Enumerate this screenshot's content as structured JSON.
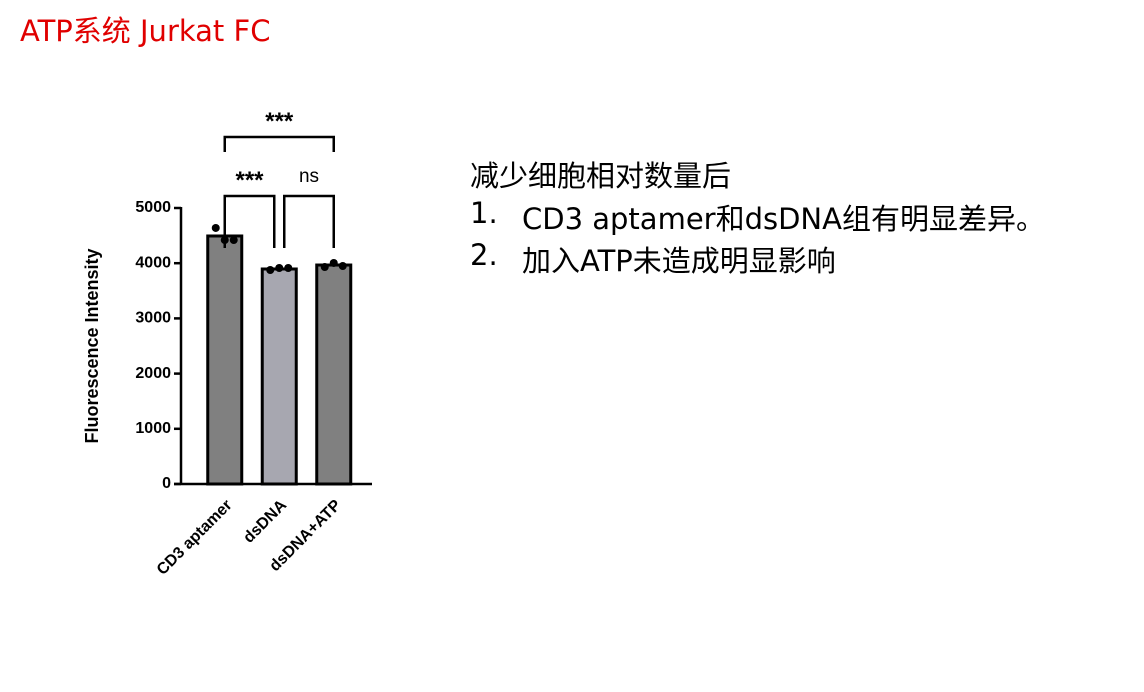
{
  "title": "ATP系统 Jurkat FC",
  "chart_data": {
    "type": "bar",
    "ylabel": "Fluorescence Intensity",
    "categories": [
      "CD3 aptamer",
      "dsDNA",
      "dsDNA+ATP"
    ],
    "values": [
      4493,
      3895,
      3967
    ],
    "colors": [
      "#808080",
      "#a7a7b0",
      "#808080"
    ],
    "points": [
      [
        4638,
        4420,
        4420
      ],
      [
        3877,
        3913,
        3913
      ],
      [
        3931,
        4004,
        3949
      ]
    ],
    "ylim": [
      0,
      5000
    ],
    "yticks": [
      0,
      1000,
      2000,
      3000,
      4000,
      5000
    ],
    "annotations": [
      {
        "label": "***",
        "between": [
          "CD3 aptamer",
          "dsDNA"
        ]
      },
      {
        "label": "ns",
        "between": [
          "dsDNA",
          "dsDNA+ATP"
        ]
      },
      {
        "label": "***",
        "between": [
          "CD3 aptamer",
          "dsDNA+ATP"
        ]
      }
    ]
  },
  "notes": {
    "heading": "减少细胞相对数量后",
    "items": [
      {
        "number": "1.",
        "text": "CD3 aptamer和dsDNA组有明显差异。"
      },
      {
        "number": "2.",
        "text": "加入ATP未造成明显影响"
      }
    ]
  }
}
